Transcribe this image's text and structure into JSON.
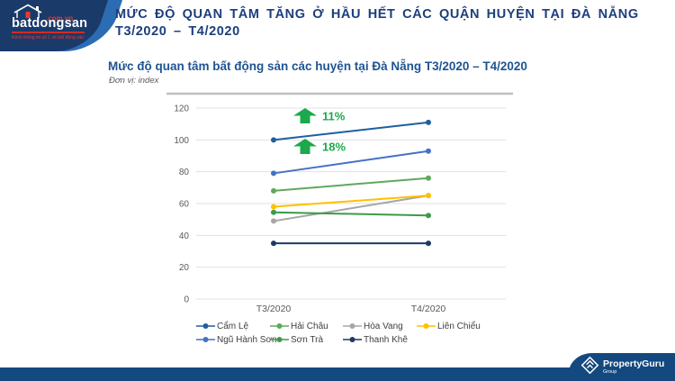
{
  "header": {
    "logo": {
      "brand": "batdongsan",
      "domain": ".com.vn",
      "tagline": "Kênh thông tin số 1 về bất động sản"
    },
    "title_line1": "MỨC ĐỘ QUAN TÂM TĂNG Ở HẦU HẾT CÁC QUẬN HUYỆN TẠI ĐÀ NẴNG",
    "title_line2": "T3/2020 – T4/2020"
  },
  "chart": {
    "title": "Mức độ quan tâm bất động sản các huyện tại Đà Nẵng T3/2020 – T4/2020",
    "unit_label": "Đơn vị: index"
  },
  "chart_data": {
    "type": "line",
    "title": "Mức độ quan tâm bất động sản các huyện tại Đà Nẵng T3/2020 – T4/2020",
    "unit": "index",
    "categories": [
      "T3/2020",
      "T4/2020"
    ],
    "series": [
      {
        "name": "Cẩm Lệ",
        "color": "#1E5FA0",
        "values": [
          100,
          111
        ]
      },
      {
        "name": "Hải Châu",
        "color": "#5FA85C",
        "values": [
          68,
          76
        ]
      },
      {
        "name": "Hòa Vang",
        "color": "#A6A6A6",
        "values": [
          49,
          65
        ]
      },
      {
        "name": "Liên Chiểu",
        "color": "#FFC000",
        "values": [
          58,
          65
        ]
      },
      {
        "name": "Ngũ Hành Sơn",
        "color": "#4472C4",
        "values": [
          79,
          93
        ]
      },
      {
        "name": "Sơn Trà",
        "color": "#3B9B47",
        "values": [
          54.5,
          52.5
        ]
      },
      {
        "name": "Thanh Khê",
        "color": "#1F3864",
        "values": [
          35,
          35
        ]
      }
    ],
    "ylim": [
      0,
      120
    ],
    "yticks": [
      0,
      20,
      40,
      60,
      80,
      100,
      120
    ],
    "grid": true,
    "legend_position": "bottom",
    "annotations": [
      {
        "text": "11%",
        "series": "Cẩm Lệ"
      },
      {
        "text": "18%",
        "series": "Ngũ Hành Sơn"
      }
    ],
    "annotation_color": "#1CA94C"
  },
  "footer": {
    "brand": "PropertyGuru",
    "sub": "Group"
  }
}
